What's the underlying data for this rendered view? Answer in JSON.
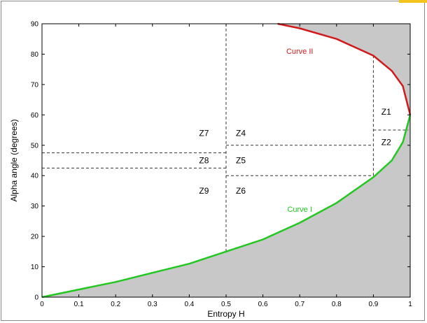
{
  "chart_data": {
    "type": "line",
    "title": "",
    "xlabel": "Entropy  H",
    "ylabel": "Alpha angle  (degrees)",
    "xlim": [
      0,
      1
    ],
    "ylim": [
      0,
      90
    ],
    "x_ticks": [
      "0",
      "0.1",
      "0.2",
      "0.3",
      "0.4",
      "0.5",
      "0.6",
      "0.7",
      "0.8",
      "0.9",
      "1"
    ],
    "y_ticks": [
      "0",
      "10",
      "20",
      "30",
      "40",
      "50",
      "60",
      "70",
      "80",
      "90"
    ],
    "grid": false,
    "infeasible_region_color": "#c8c8c8",
    "series": [
      {
        "name": "Curve I",
        "color": "#22c71f",
        "x": [
          0,
          0.1,
          0.2,
          0.3,
          0.4,
          0.5,
          0.6,
          0.7,
          0.8,
          0.9,
          0.95,
          0.98,
          1.0
        ],
        "y": [
          0,
          2.5,
          5,
          8,
          11,
          15,
          19,
          24.5,
          31,
          39.5,
          45,
          51,
          60
        ]
      },
      {
        "name": "Curve II",
        "color": "#d11a1a",
        "x": [
          0.64,
          0.7,
          0.8,
          0.9,
          0.95,
          0.98,
          1.0
        ],
        "y": [
          90,
          88.5,
          85,
          79.5,
          74.5,
          69.5,
          60
        ]
      }
    ],
    "boundaries": [
      {
        "x": [
          0.5,
          0.5
        ],
        "y": [
          15,
          90
        ]
      },
      {
        "x": [
          0.9,
          0.9
        ],
        "y": [
          40,
          79.5
        ]
      },
      {
        "x": [
          0,
          0.5
        ],
        "y": [
          47.5,
          47.5
        ]
      },
      {
        "x": [
          0,
          0.5
        ],
        "y": [
          42.5,
          42.5
        ]
      },
      {
        "x": [
          0.5,
          0.9
        ],
        "y": [
          50,
          50
        ]
      },
      {
        "x": [
          0.5,
          0.9
        ],
        "y": [
          40,
          40
        ]
      },
      {
        "x": [
          0.9,
          0.995
        ],
        "y": [
          55,
          55
        ]
      }
    ],
    "zones": [
      {
        "label": "Z1",
        "x": 0.935,
        "y": 61
      },
      {
        "label": "Z2",
        "x": 0.935,
        "y": 51
      },
      {
        "label": "Z4",
        "x": 0.54,
        "y": 54
      },
      {
        "label": "Z5",
        "x": 0.54,
        "y": 45
      },
      {
        "label": "Z6",
        "x": 0.54,
        "y": 35
      },
      {
        "label": "Z7",
        "x": 0.44,
        "y": 54
      },
      {
        "label": "Z8",
        "x": 0.44,
        "y": 45
      },
      {
        "label": "Z9",
        "x": 0.44,
        "y": 35
      }
    ],
    "curve_labels": [
      {
        "text": "Curve II",
        "x": 0.7,
        "y": 81,
        "color": "#d11a1a"
      },
      {
        "text": "Curve I",
        "x": 0.7,
        "y": 29,
        "color": "#22c71f"
      }
    ]
  }
}
